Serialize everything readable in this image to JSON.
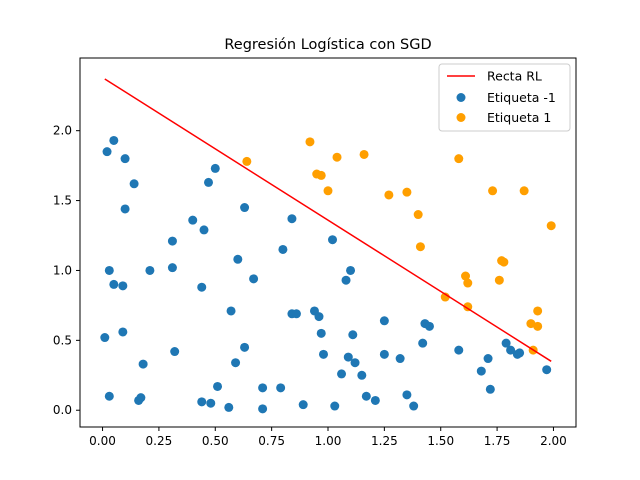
{
  "chart_data": {
    "type": "scatter",
    "title": "Regresión Logística con SGD",
    "xlabel": "",
    "ylabel": "",
    "xlim": [
      -0.1,
      2.1
    ],
    "ylim": [
      -0.12,
      2.52
    ],
    "xticks": [
      0.0,
      0.25,
      0.5,
      0.75,
      1.0,
      1.25,
      1.5,
      1.75,
      2.0
    ],
    "xtick_labels": [
      "0.00",
      "0.25",
      "0.50",
      "0.75",
      "1.00",
      "1.25",
      "1.50",
      "1.75",
      "2.00"
    ],
    "yticks": [
      0.0,
      0.5,
      1.0,
      1.5,
      2.0
    ],
    "ytick_labels": [
      "0.0",
      "0.5",
      "1.0",
      "1.5",
      "2.0"
    ],
    "grid": false,
    "legend_position": "top-right",
    "line": {
      "name": "Recta RL",
      "color": "#ff0000",
      "x": [
        0.01,
        1.99
      ],
      "y": [
        2.37,
        0.35
      ]
    },
    "series": [
      {
        "name": "Etiqueta -1",
        "color": "#1f77b4",
        "points": [
          [
            0.02,
            1.85
          ],
          [
            0.05,
            1.93
          ],
          [
            0.1,
            1.8
          ],
          [
            0.14,
            1.62
          ],
          [
            0.1,
            1.44
          ],
          [
            0.03,
            1.0
          ],
          [
            0.05,
            0.9
          ],
          [
            0.09,
            0.89
          ],
          [
            0.21,
            1.0
          ],
          [
            0.31,
            1.21
          ],
          [
            0.31,
            1.02
          ],
          [
            0.01,
            0.52
          ],
          [
            0.09,
            0.56
          ],
          [
            0.03,
            0.1
          ],
          [
            0.16,
            0.07
          ],
          [
            0.17,
            0.09
          ],
          [
            0.18,
            0.33
          ],
          [
            0.32,
            0.42
          ],
          [
            0.4,
            1.36
          ],
          [
            0.45,
            1.29
          ],
          [
            0.47,
            1.63
          ],
          [
            0.5,
            1.73
          ],
          [
            0.44,
            0.88
          ],
          [
            0.57,
            0.71
          ],
          [
            0.6,
            1.08
          ],
          [
            0.63,
            1.45
          ],
          [
            0.67,
            0.94
          ],
          [
            0.59,
            0.34
          ],
          [
            0.63,
            0.45
          ],
          [
            0.51,
            0.17
          ],
          [
            0.44,
            0.06
          ],
          [
            0.48,
            0.05
          ],
          [
            0.56,
            0.02
          ],
          [
            0.71,
            0.16
          ],
          [
            0.71,
            0.01
          ],
          [
            0.79,
            0.16
          ],
          [
            0.8,
            1.15
          ],
          [
            0.84,
            1.37
          ],
          [
            0.84,
            0.69
          ],
          [
            0.86,
            0.69
          ],
          [
            0.89,
            0.04
          ],
          [
            0.94,
            0.71
          ],
          [
            0.96,
            0.67
          ],
          [
            0.97,
            0.55
          ],
          [
            0.98,
            0.4
          ],
          [
            1.02,
            1.22
          ],
          [
            1.08,
            0.93
          ],
          [
            1.1,
            1.0
          ],
          [
            1.09,
            0.38
          ],
          [
            1.11,
            0.54
          ],
          [
            1.12,
            0.34
          ],
          [
            1.15,
            0.25
          ],
          [
            1.06,
            0.26
          ],
          [
            1.03,
            0.03
          ],
          [
            1.17,
            0.1
          ],
          [
            1.21,
            0.07
          ],
          [
            1.25,
            0.64
          ],
          [
            1.25,
            0.4
          ],
          [
            1.32,
            0.37
          ],
          [
            1.35,
            0.11
          ],
          [
            1.38,
            0.03
          ],
          [
            1.42,
            0.48
          ],
          [
            1.43,
            0.62
          ],
          [
            1.45,
            0.6
          ],
          [
            1.58,
            0.43
          ],
          [
            1.68,
            0.28
          ],
          [
            1.71,
            0.37
          ],
          [
            1.72,
            0.15
          ],
          [
            1.79,
            0.48
          ],
          [
            1.81,
            0.43
          ],
          [
            1.84,
            0.4
          ],
          [
            1.85,
            0.41
          ],
          [
            1.97,
            0.29
          ]
        ]
      },
      {
        "name": "Etiqueta 1",
        "color": "#ff9f00",
        "points": [
          [
            0.64,
            1.78
          ],
          [
            0.92,
            1.92
          ],
          [
            0.95,
            1.69
          ],
          [
            0.97,
            1.68
          ],
          [
            1.0,
            1.57
          ],
          [
            1.04,
            1.81
          ],
          [
            1.16,
            1.83
          ],
          [
            1.27,
            1.54
          ],
          [
            1.35,
            1.56
          ],
          [
            1.4,
            1.4
          ],
          [
            1.41,
            1.17
          ],
          [
            1.52,
            0.81
          ],
          [
            1.58,
            1.8
          ],
          [
            1.61,
            0.96
          ],
          [
            1.62,
            0.91
          ],
          [
            1.62,
            0.74
          ],
          [
            1.73,
            1.57
          ],
          [
            1.76,
            0.93
          ],
          [
            1.77,
            1.07
          ],
          [
            1.78,
            1.06
          ],
          [
            1.87,
            1.57
          ],
          [
            1.9,
            0.62
          ],
          [
            1.91,
            0.43
          ],
          [
            1.93,
            0.71
          ],
          [
            1.93,
            0.6
          ],
          [
            1.99,
            1.32
          ]
        ]
      }
    ]
  }
}
